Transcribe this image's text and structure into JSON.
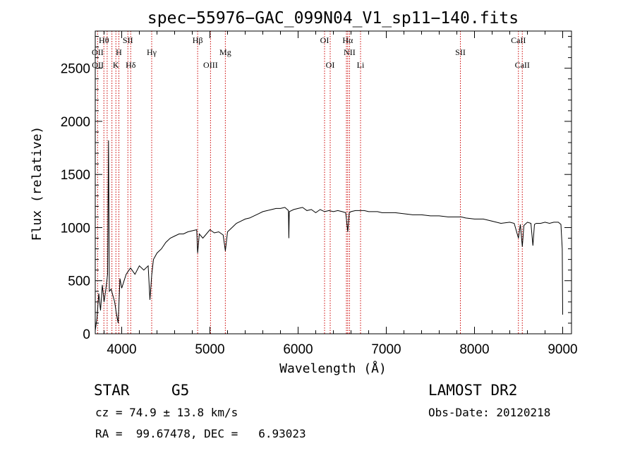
{
  "chart_data": {
    "type": "line",
    "title": "spec−55976−GAC_099N04_V1_sp11−140.fits",
    "xlabel": "Wavelength (Å)",
    "ylabel": "Flux (relative)",
    "xlim": [
      3700,
      9100
    ],
    "ylim": [
      0,
      2850
    ],
    "x_ticks": [
      4000,
      5000,
      6000,
      7000,
      8000,
      9000
    ],
    "y_ticks": [
      0,
      500,
      1000,
      1500,
      2000,
      2500
    ],
    "grid": false,
    "series": [
      {
        "color": "#000000",
        "x": [
          3700,
          3720,
          3740,
          3760,
          3780,
          3800,
          3820,
          3840,
          3850,
          3860,
          3880,
          3900,
          3920,
          3940,
          3960,
          3980,
          4000,
          4050,
          4100,
          4150,
          4200,
          4250,
          4300,
          4320,
          4340,
          4360,
          4400,
          4450,
          4500,
          4550,
          4600,
          4650,
          4700,
          4750,
          4800,
          4850,
          4861,
          4880,
          4920,
          4950,
          5000,
          5050,
          5100,
          5150,
          5175,
          5200,
          5250,
          5300,
          5350,
          5400,
          5450,
          5500,
          5550,
          5600,
          5650,
          5700,
          5750,
          5800,
          5850,
          5890,
          5895,
          5900,
          5950,
          6000,
          6050,
          6100,
          6150,
          6200,
          6250,
          6300,
          6350,
          6400,
          6450,
          6500,
          6540,
          6563,
          6580,
          6600,
          6650,
          6700,
          6750,
          6800,
          6850,
          6900,
          6950,
          7000,
          7100,
          7200,
          7300,
          7400,
          7500,
          7600,
          7700,
          7800,
          7850,
          7900,
          8000,
          8100,
          8200,
          8300,
          8400,
          8450,
          8498,
          8520,
          8542,
          8560,
          8600,
          8640,
          8662,
          8680,
          8700,
          8750,
          8800,
          8850,
          8900,
          8950,
          8980,
          8995,
          9000
        ],
        "y": [
          30,
          150,
          380,
          220,
          460,
          300,
          420,
          560,
          1820,
          400,
          420,
          360,
          300,
          190,
          100,
          520,
          430,
          560,
          620,
          560,
          640,
          600,
          640,
          320,
          550,
          700,
          760,
          800,
          860,
          900,
          920,
          940,
          940,
          960,
          970,
          980,
          760,
          940,
          900,
          930,
          980,
          950,
          960,
          930,
          780,
          960,
          1000,
          1040,
          1060,
          1080,
          1090,
          1110,
          1130,
          1150,
          1160,
          1170,
          1180,
          1180,
          1190,
          1160,
          900,
          1150,
          1170,
          1180,
          1190,
          1160,
          1170,
          1140,
          1170,
          1150,
          1160,
          1150,
          1160,
          1150,
          1140,
          960,
          1140,
          1150,
          1160,
          1160,
          1160,
          1150,
          1150,
          1150,
          1140,
          1140,
          1140,
          1130,
          1120,
          1120,
          1110,
          1110,
          1100,
          1100,
          1100,
          1090,
          1080,
          1080,
          1060,
          1040,
          1050,
          1040,
          900,
          1030,
          820,
          1020,
          1050,
          1040,
          830,
          1030,
          1040,
          1040,
          1050,
          1040,
          1050,
          1050,
          1030,
          800,
          180
        ]
      }
    ],
    "spectral_lines": [
      {
        "label": "Hθ",
        "wavelength": 3798,
        "row": 0
      },
      {
        "label": "OII",
        "wavelength": 3727,
        "row": 1
      },
      {
        "label": "OII",
        "wavelength": 3729,
        "row": 2
      },
      {
        "label": "SII",
        "wavelength": 4070,
        "row": 0
      },
      {
        "label": "H",
        "wavelength": 3968,
        "row": 1
      },
      {
        "label": "K",
        "wavelength": 3934,
        "row": 2
      },
      {
        "label": "Hδ",
        "wavelength": 4102,
        "row": 2
      },
      {
        "label": "Hγ",
        "wavelength": 4340,
        "row": 1
      },
      {
        "label": "Hβ",
        "wavelength": 4861,
        "row": 0
      },
      {
        "label": "Mg",
        "wavelength": 5175,
        "row": 1
      },
      {
        "label": "OIII",
        "wavelength": 5007,
        "row": 2
      },
      {
        "label": "OI",
        "wavelength": 6300,
        "row": 0
      },
      {
        "label": "OI",
        "wavelength": 6364,
        "row": 2
      },
      {
        "label": "Hα",
        "wavelength": 6563,
        "row": 0
      },
      {
        "label": "NII",
        "wavelength": 6583,
        "row": 1
      },
      {
        "label": "Li",
        "wavelength": 6708,
        "row": 2
      },
      {
        "label": "SII",
        "wavelength": 7840,
        "row": 1
      },
      {
        "label": "CaII",
        "wavelength": 8498,
        "row": 0
      },
      {
        "label": "CaII",
        "wavelength": 8542,
        "row": 2
      }
    ],
    "line_marker_wavelengths": [
      3727,
      3798,
      3835,
      3889,
      3934,
      3968,
      4070,
      4102,
      4340,
      4861,
      5007,
      5175,
      6300,
      6364,
      6548,
      6563,
      6583,
      6708,
      7840,
      8498,
      8542
    ]
  },
  "info": {
    "object_type": "STAR",
    "subclass": "G5",
    "survey": "LAMOST DR2",
    "redshift_line": "cz = 74.9 ± 13.8 km/s",
    "obs_date_line": "Obs-Date: 20120218",
    "coords_line": "RA =  99.67478, DEC =   6.93023"
  },
  "colors": {
    "spectrum": "#000000",
    "line_markers": "#cc0000"
  }
}
